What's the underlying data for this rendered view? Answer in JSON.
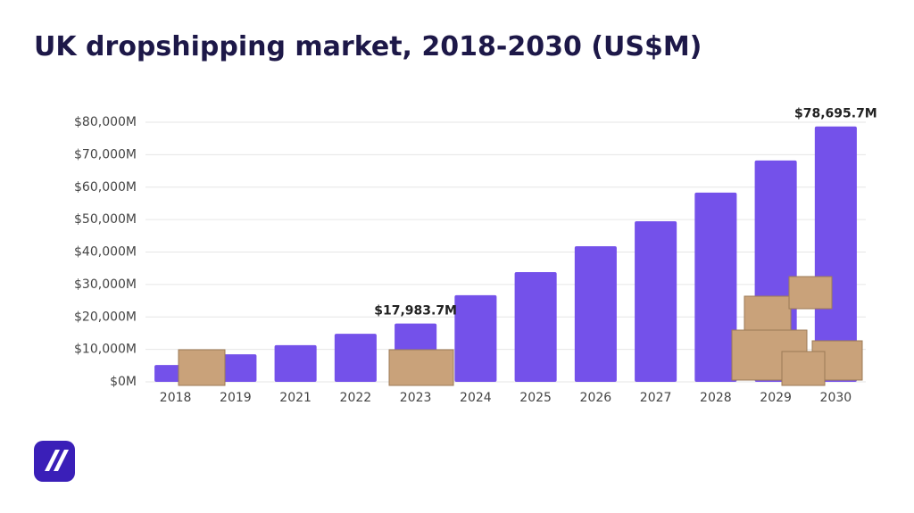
{
  "chart_data": {
    "type": "bar",
    "title": "UK dropshipping market, 2018-2030 (US$M)",
    "categories": [
      "2018",
      "2019",
      "2021",
      "2022",
      "2023",
      "2024",
      "2025",
      "2026",
      "2027",
      "2028",
      "2029",
      "2030"
    ],
    "values": [
      5200,
      8500,
      11300,
      14800,
      17983.7,
      26700,
      33800,
      41800,
      49500,
      58300,
      68200,
      78695.7
    ],
    "value_labels": [
      null,
      null,
      null,
      null,
      "$17,983.7M",
      null,
      null,
      null,
      null,
      null,
      null,
      "$78,695.7M"
    ],
    "color": "#7451ea",
    "ylim": [
      0,
      80000
    ],
    "yticks": [
      {
        "value": 0,
        "label": "$0M"
      },
      {
        "value": 10000,
        "label": "$10,000M"
      },
      {
        "value": 20000,
        "label": "$20,000M"
      },
      {
        "value": 30000,
        "label": "$30,000M"
      },
      {
        "value": 40000,
        "label": "$40,000M"
      },
      {
        "value": 50000,
        "label": "$50,000M"
      },
      {
        "value": 60000,
        "label": "$60,000M"
      },
      {
        "value": 70000,
        "label": "$70,000M"
      },
      {
        "value": 80000,
        "label": "$80,000M"
      }
    ],
    "grid": true
  }
}
